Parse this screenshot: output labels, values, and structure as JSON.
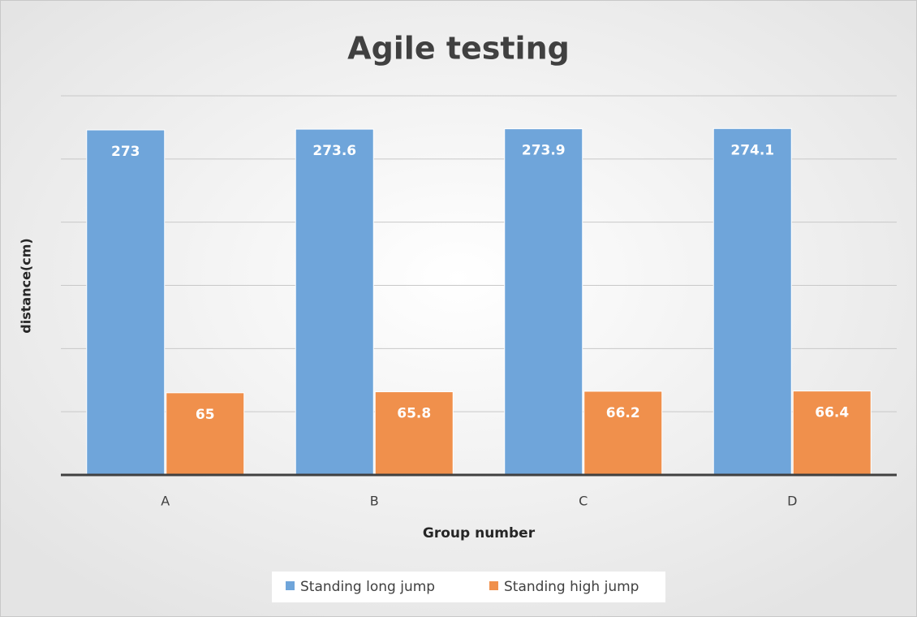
{
  "chart_data": {
    "type": "bar",
    "title": "Agile testing",
    "x_label": "Group number",
    "y_label": "distance(cm)",
    "categories": [
      "A",
      "B",
      "C",
      "D"
    ],
    "series": [
      {
        "name": "Standing long jump",
        "color": "#6fa5da",
        "values": [
          273,
          273.6,
          273.9,
          274.1
        ]
      },
      {
        "name": "Standing high jump",
        "color": "#f0904c",
        "values": [
          65,
          65.8,
          66.2,
          66.4
        ]
      }
    ],
    "ylim": [
      0,
      300
    ],
    "yticks": [
      0,
      50,
      100,
      150,
      200,
      250,
      300
    ],
    "grid": true,
    "legend": "bottom"
  }
}
